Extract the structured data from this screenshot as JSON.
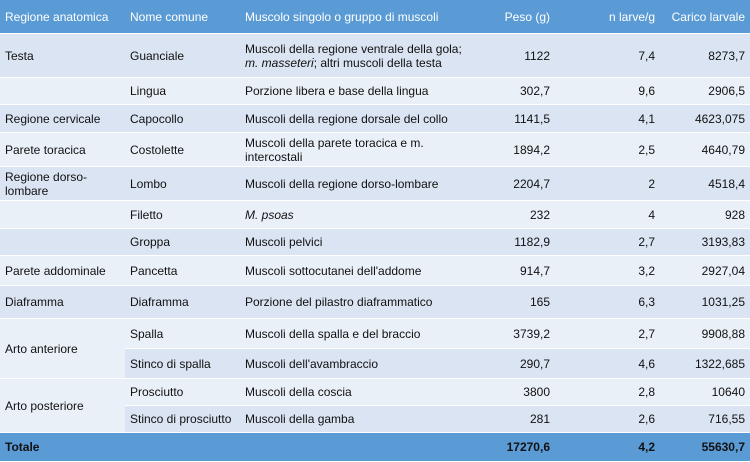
{
  "table": {
    "header": [
      "Regione anatomica",
      "Nome comune",
      "Muscolo singolo o gruppo di muscoli",
      "Peso (g)",
      "n larve/g",
      "Carico larvale"
    ],
    "rows": [
      [
        "Testa",
        "Guanciale",
        [
          "Muscoli della regione ventrale della gola;",
          "m. masseteri",
          "; altri muscoli della testa"
        ],
        "1122",
        "7,4",
        "8273,7"
      ],
      [
        null,
        "Lingua",
        "Porzione libera e base della lingua",
        "302,7",
        "9,6",
        "2906,5"
      ],
      [
        "Regione cervicale",
        "Capocollo",
        "Muscoli della regione dorsale del collo",
        "1141,5",
        "4,1",
        "4623,075"
      ],
      [
        "Parete toracica",
        "Costolette",
        "Muscoli della parete toracica e m. intercostali",
        "1894,2",
        "2,5",
        "4640,79"
      ],
      [
        "Regione dorso-lombare",
        "Lombo",
        "Muscoli della regione dorso-lombare",
        "2204,7",
        "2",
        "4518,4"
      ],
      [
        null,
        "Filetto",
        "M. psoas",
        "232",
        "4",
        "928"
      ],
      [
        null,
        "Groppa",
        "Muscoli pelvici",
        "1182,9",
        "2,7",
        "3193,83"
      ],
      [
        "Parete addominale",
        "Pancetta",
        "Muscoli sottocutanei dell'addome",
        "914,7",
        "3,2",
        "2927,04"
      ],
      [
        "Diaframma",
        "Diaframma",
        "Porzione del pilastro diaframmatico",
        "165",
        "6,3",
        "1031,25"
      ],
      [
        "Arto anteriore",
        "Spalla",
        "Muscoli della spalla e del braccio",
        "3739,2",
        "2,7",
        "9908,88"
      ],
      [
        null,
        "Stinco di spalla",
        "Muscoli dell'avambraccio",
        "290,7",
        "4,6",
        "1322,685"
      ],
      [
        "Arto posteriore",
        "Prosciutto",
        "Muscoli della coscia",
        "3800",
        "2,8",
        "10640"
      ],
      [
        null,
        "Stinco di prosciutto",
        "Muscoli della gamba",
        "281",
        "2,6",
        "716,55"
      ]
    ],
    "total": [
      "Totale",
      "17270,6",
      "4,2",
      "55630,7"
    ]
  }
}
